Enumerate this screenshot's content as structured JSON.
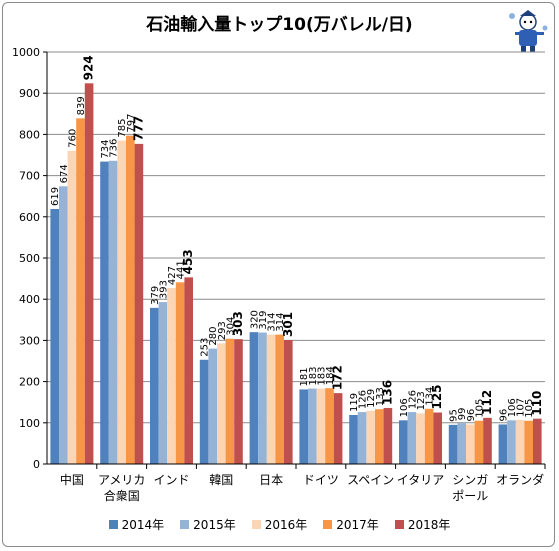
{
  "chart_data": {
    "type": "bar",
    "title": "石油輸入量トップ10(万バレル/日)",
    "ylim": [
      0,
      1000
    ],
    "yticks": [
      "0",
      "100",
      "200",
      "300",
      "400",
      "500",
      "600",
      "700",
      "800",
      "900",
      "1000"
    ],
    "grid": true,
    "legend_position": "bottom",
    "categories": [
      [
        "中国"
      ],
      [
        "アメリカ",
        "合衆国"
      ],
      [
        "インド"
      ],
      [
        "韓国"
      ],
      [
        "日本"
      ],
      [
        "ドイツ"
      ],
      [
        "スペイン"
      ],
      [
        "イタリア"
      ],
      [
        "シンガ",
        "ポール"
      ],
      [
        "オランダ"
      ]
    ],
    "series": [
      {
        "name": "2014年",
        "color": "#4f81bd",
        "values": [
          619,
          734,
          379,
          253,
          320,
          181,
          119,
          106,
          95,
          96
        ]
      },
      {
        "name": "2015年",
        "color": "#95b3d7",
        "values": [
          674,
          736,
          393,
          280,
          319,
          183,
          126,
          126,
          99,
          106
        ]
      },
      {
        "name": "2016年",
        "color": "#fcd5b5",
        "values": [
          760,
          785,
          427,
          293,
          314,
          183,
          129,
          123,
          96,
          107
        ]
      },
      {
        "name": "2017年",
        "color": "#f79646",
        "values": [
          839,
          797,
          441,
          304,
          314,
          184,
          133,
          134,
          105,
          105
        ]
      },
      {
        "name": "2018年",
        "color": "#c0504d",
        "values": [
          924,
          777,
          453,
          303,
          301,
          172,
          136,
          125,
          112,
          110
        ]
      }
    ]
  }
}
